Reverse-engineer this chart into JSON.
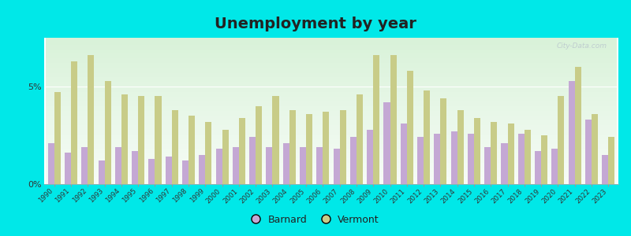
{
  "title": "Unemployment by year",
  "years": [
    1990,
    1991,
    1992,
    1993,
    1994,
    1995,
    1996,
    1997,
    1998,
    1999,
    2000,
    2001,
    2002,
    2003,
    2004,
    2005,
    2006,
    2007,
    2008,
    2009,
    2010,
    2011,
    2012,
    2013,
    2014,
    2015,
    2016,
    2017,
    2018,
    2019,
    2020,
    2021,
    2022,
    2023
  ],
  "barnard": [
    2.1,
    1.6,
    1.9,
    1.2,
    1.9,
    1.7,
    1.3,
    1.4,
    1.2,
    1.5,
    1.8,
    1.9,
    2.4,
    1.9,
    2.1,
    1.9,
    1.9,
    1.8,
    2.4,
    2.8,
    4.2,
    3.1,
    2.4,
    2.6,
    2.7,
    2.6,
    1.9,
    2.1,
    2.6,
    1.7,
    1.8,
    5.3,
    3.3,
    1.5
  ],
  "vermont": [
    4.7,
    6.3,
    6.6,
    5.3,
    4.6,
    4.5,
    4.5,
    3.8,
    3.5,
    3.2,
    2.8,
    3.4,
    4.0,
    4.5,
    3.8,
    3.6,
    3.7,
    3.8,
    4.6,
    6.6,
    6.6,
    5.8,
    4.8,
    4.4,
    3.8,
    3.4,
    3.2,
    3.1,
    2.8,
    2.5,
    4.5,
    6.0,
    3.6,
    2.4
  ],
  "barnard_color": "#c4a8d4",
  "vermont_color": "#c8cc88",
  "title_fontsize": 14,
  "bar_width": 0.38,
  "ylim": [
    0,
    7.5
  ],
  "legend_labels": [
    "Barnard",
    "Vermont"
  ],
  "bg_outer": "#00e8e8",
  "grid_color": "#ffffff",
  "watermark": "City-Data.com"
}
